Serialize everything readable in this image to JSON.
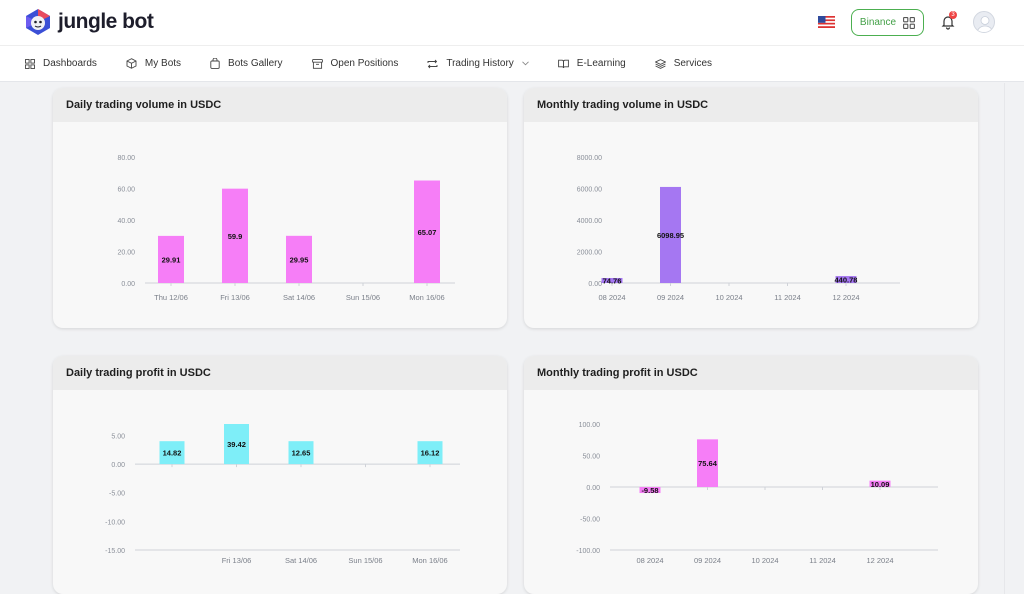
{
  "brand": {
    "name": "jungle bot"
  },
  "header": {
    "exchange_label": "Binance",
    "notification_count": "3"
  },
  "nav": {
    "items": [
      {
        "id": "dashboards",
        "label": "Dashboards"
      },
      {
        "id": "my-bots",
        "label": "My Bots"
      },
      {
        "id": "bots-gallery",
        "label": "Bots Gallery"
      },
      {
        "id": "open-positions",
        "label": "Open Positions"
      },
      {
        "id": "trading-history",
        "label": "Trading History"
      },
      {
        "id": "e-learning",
        "label": "E-Learning"
      },
      {
        "id": "services",
        "label": "Services"
      }
    ]
  },
  "colors": {
    "pink": "#f67ef7",
    "purple": "#a577f2",
    "cyan": "#7eeef8",
    "accent_green": "#43a047"
  },
  "chart_data": [
    {
      "id": "daily-volume",
      "type": "bar",
      "title": "Daily trading volume in USDC",
      "categories": [
        "Thu 12/06",
        "Fri 13/06",
        "Sat 14/06",
        "Sun 15/06",
        "Mon 16/06"
      ],
      "values": [
        29.91,
        59.9,
        29.95,
        null,
        65.07
      ],
      "value_labels": [
        "29.91",
        "59.9",
        "29.95",
        "",
        "65.07"
      ],
      "ylim": [
        0,
        80
      ],
      "yticks": [
        "80.00",
        "60.00",
        "40.00",
        "20.00",
        "0.00"
      ],
      "ytick_values": [
        80,
        60,
        40,
        20,
        0
      ],
      "color": "#f67ef7"
    },
    {
      "id": "monthly-volume",
      "type": "bar",
      "title": "Monthly trading volume in USDC",
      "categories": [
        "08 2024",
        "09 2024",
        "10 2024",
        "11 2024",
        "12 2024"
      ],
      "values": [
        74.76,
        6098.95,
        null,
        null,
        440.78
      ],
      "value_labels": [
        "74.76",
        "6098.95",
        "",
        "",
        "440.78"
      ],
      "ylim": [
        0,
        8000
      ],
      "yticks": [
        "8000.00",
        "6000.00",
        "4000.00",
        "2000.00",
        "0.00"
      ],
      "ytick_values": [
        8000,
        6000,
        4000,
        2000,
        0
      ],
      "color": "#a577f2"
    },
    {
      "id": "daily-profit",
      "type": "bar",
      "title": "Daily trading profit in USDC",
      "categories": [
        "",
        "Fri 13/06",
        "Sat 14/06",
        "Sun 15/06",
        "Mon 16/06"
      ],
      "values": [
        14.82,
        39.42,
        12.65,
        null,
        16.12
      ],
      "display_values": [
        4,
        7,
        4,
        null,
        4
      ],
      "value_labels": [
        "14.82",
        "39.42",
        "12.65",
        "",
        "16.12"
      ],
      "ylim": [
        -15,
        7
      ],
      "yticks": [
        "5.00",
        "0.00",
        "-5.00",
        "-10.00",
        "-15.00"
      ],
      "ytick_values": [
        5,
        0,
        -5,
        -10,
        -15
      ],
      "color": "#7eeef8"
    },
    {
      "id": "monthly-profit",
      "type": "bar",
      "title": "Monthly trading profit in USDC",
      "categories": [
        "08 2024",
        "09 2024",
        "10 2024",
        "11 2024",
        "12 2024"
      ],
      "values": [
        -9.58,
        75.64,
        null,
        null,
        10.09
      ],
      "value_labels": [
        "-9.58",
        "75.64",
        "",
        "",
        "10.09"
      ],
      "ylim": [
        -100,
        100
      ],
      "yticks": [
        "100.00",
        "50.00",
        "0.00",
        "-50.00",
        "-100.00"
      ],
      "ytick_values": [
        100,
        50,
        0,
        -50,
        -100
      ],
      "color": "#f67ef7"
    }
  ]
}
